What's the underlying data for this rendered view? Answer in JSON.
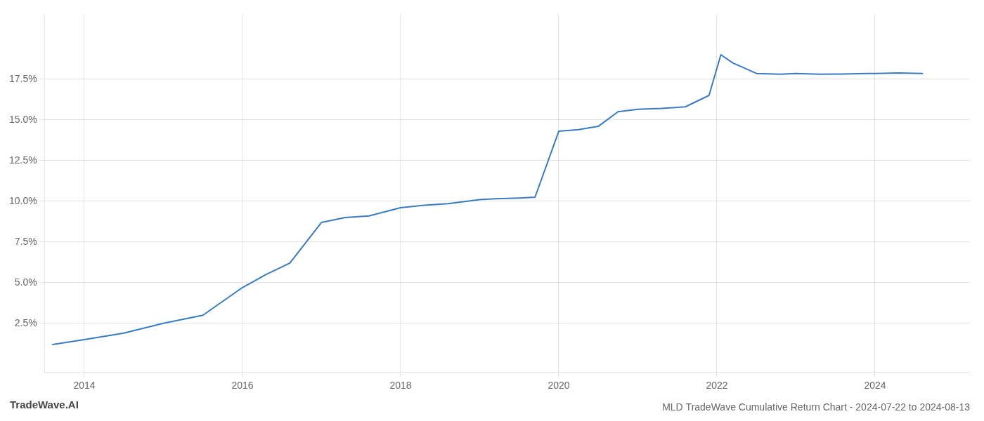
{
  "chart_data": {
    "type": "line",
    "title": "MLD TradeWave Cumulative Return Chart - 2024-07-22 to 2024-08-13",
    "annotations": [
      "TradeWave.AI"
    ],
    "x": [
      2013.6,
      2014.0,
      2014.5,
      2015.0,
      2015.5,
      2016.0,
      2016.3,
      2016.6,
      2017.0,
      2017.3,
      2017.6,
      2018.0,
      2018.3,
      2018.6,
      2019.0,
      2019.2,
      2019.5,
      2019.7,
      2020.0,
      2020.25,
      2020.5,
      2020.75,
      2021.0,
      2021.3,
      2021.6,
      2021.9,
      2022.05,
      2022.2,
      2022.5,
      2022.8,
      2023.0,
      2023.3,
      2023.6,
      2023.9,
      2024.0,
      2024.3,
      2024.6
    ],
    "values": [
      1.2,
      1.5,
      1.9,
      2.5,
      3.0,
      4.7,
      5.5,
      6.2,
      8.7,
      9.0,
      9.1,
      9.6,
      9.75,
      9.85,
      10.1,
      10.15,
      10.2,
      10.25,
      14.3,
      14.4,
      14.6,
      15.5,
      15.65,
      15.7,
      15.8,
      16.5,
      19.0,
      18.5,
      17.85,
      17.8,
      17.85,
      17.8,
      17.82,
      17.85,
      17.85,
      17.88,
      17.85
    ],
    "color": "#3a7abf",
    "xlim": [
      2013.5,
      2025.2
    ],
    "ylim": [
      -0.5,
      21.5
    ],
    "xticks": [
      2014,
      2016,
      2018,
      2020,
      2022,
      2024
    ],
    "yticks": [
      {
        "value": 2.5,
        "label": "2.5%"
      },
      {
        "value": 5.0,
        "label": "5.0%"
      },
      {
        "value": 7.5,
        "label": "7.5%"
      },
      {
        "value": 10.0,
        "label": "10.0%"
      },
      {
        "value": 12.5,
        "label": "12.5%"
      },
      {
        "value": 15.0,
        "label": "15.0%"
      },
      {
        "value": 17.5,
        "label": "17.5%"
      }
    ],
    "grid": true
  }
}
